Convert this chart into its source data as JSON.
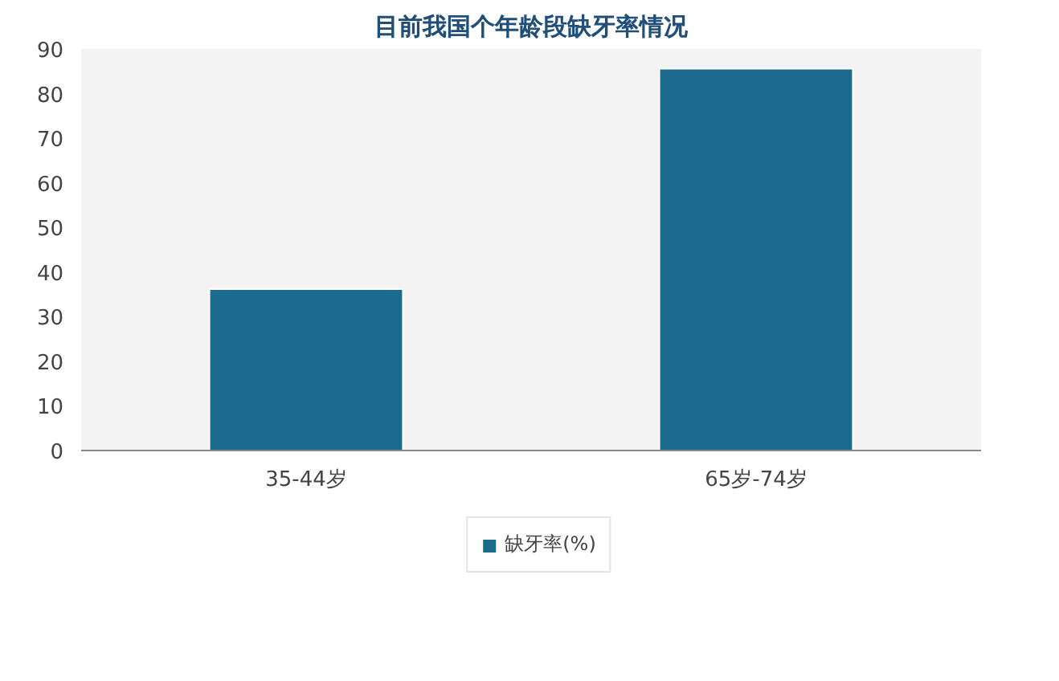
{
  "chart_data": {
    "type": "bar",
    "title": "目前我国个年龄段缺牙率情况",
    "categories": [
      "35-44岁",
      "65岁-74岁"
    ],
    "series": [
      {
        "name": "缺牙率(%)",
        "color": "#1c6b8f",
        "values": [
          36.2,
          85.6
        ]
      }
    ],
    "ylim": [
      0,
      90
    ],
    "yticks": [
      0,
      10,
      20,
      30,
      40,
      50,
      60,
      70,
      80,
      90
    ],
    "legend": "bottom",
    "grid": false
  }
}
